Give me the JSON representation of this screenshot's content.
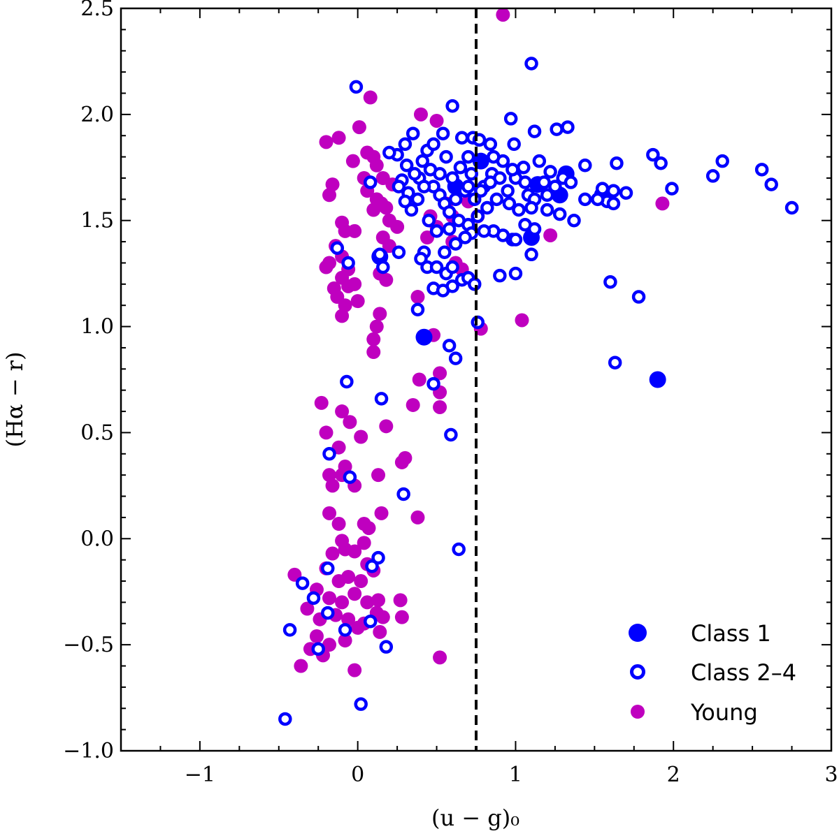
{
  "chart_data": {
    "type": "scatter",
    "xlabel": "(u − g)₀",
    "ylabel": "(Hα − r)",
    "xlim": [
      -1.5,
      3.0
    ],
    "ylim": [
      -1.0,
      2.5
    ],
    "x_ticks": [
      -1,
      0,
      1,
      2,
      3
    ],
    "x_tick_labels": [
      "−1",
      "0",
      "1",
      "2",
      "3"
    ],
    "y_ticks": [
      -1.0,
      -0.5,
      0.0,
      0.5,
      1.0,
      1.5,
      2.0,
      2.5
    ],
    "y_tick_labels": [
      "−1.0",
      "−0.5",
      "0.0",
      "0.5",
      "1.0",
      "1.5",
      "2.0",
      "2.5"
    ],
    "vline_x": 0.75,
    "legend_position": "lower-right",
    "colors": {
      "class1": "#0000ff",
      "class24": "#0000ff",
      "young": "#bf00bf"
    },
    "series": [
      {
        "name": "Class 1",
        "marker": "filled-large",
        "points": [
          [
            0.14,
            1.33
          ],
          [
            0.42,
            0.95
          ],
          [
            1.1,
            1.42
          ],
          [
            1.32,
            1.72
          ],
          [
            1.28,
            1.62
          ],
          [
            1.9,
            0.75
          ],
          [
            0.78,
            1.78
          ],
          [
            0.62,
            1.66
          ],
          [
            1.14,
            1.67
          ],
          [
            1.55,
            1.62
          ]
        ]
      },
      {
        "name": "Class 2–4",
        "marker": "open",
        "points": [
          [
            -0.01,
            2.13
          ],
          [
            0.6,
            2.04
          ],
          [
            1.1,
            2.24
          ],
          [
            0.97,
            1.98
          ],
          [
            1.26,
            1.93
          ],
          [
            1.33,
            1.94
          ],
          [
            1.12,
            1.92
          ],
          [
            0.54,
            1.91
          ],
          [
            0.35,
            1.91
          ],
          [
            0.66,
            1.89
          ],
          [
            0.73,
            1.89
          ],
          [
            0.77,
            1.88
          ],
          [
            0.84,
            1.86
          ],
          [
            0.99,
            1.86
          ],
          [
            1.87,
            1.81
          ],
          [
            1.92,
            1.77
          ],
          [
            2.31,
            1.78
          ],
          [
            2.56,
            1.74
          ],
          [
            2.62,
            1.67
          ],
          [
            2.75,
            1.56
          ],
          [
            2.25,
            1.71
          ],
          [
            1.99,
            1.65
          ],
          [
            1.64,
            1.77
          ],
          [
            1.44,
            1.76
          ],
          [
            1.7,
            1.63
          ],
          [
            1.62,
            1.64
          ],
          [
            1.58,
            1.59
          ],
          [
            1.52,
            1.6
          ],
          [
            1.44,
            1.6
          ],
          [
            1.37,
            1.5
          ],
          [
            1.28,
            1.53
          ],
          [
            1.62,
            1.58
          ],
          [
            1.55,
            1.65
          ],
          [
            0.3,
            1.86
          ],
          [
            0.25,
            1.81
          ],
          [
            0.2,
            1.82
          ],
          [
            0.31,
            1.76
          ],
          [
            0.28,
            1.69
          ],
          [
            0.26,
            1.66
          ],
          [
            0.32,
            1.63
          ],
          [
            0.3,
            1.59
          ],
          [
            0.34,
            1.55
          ],
          [
            0.38,
            1.6
          ],
          [
            0.39,
            1.7
          ],
          [
            0.41,
            1.78
          ],
          [
            0.44,
            1.83
          ],
          [
            0.46,
            1.74
          ],
          [
            0.48,
            1.66
          ],
          [
            0.52,
            1.62
          ],
          [
            0.55,
            1.58
          ],
          [
            0.58,
            1.54
          ],
          [
            0.45,
            1.5
          ],
          [
            0.5,
            1.45
          ],
          [
            0.6,
            1.7
          ],
          [
            0.65,
            1.75
          ],
          [
            0.7,
            1.8
          ],
          [
            0.72,
            1.72
          ],
          [
            0.68,
            1.64
          ],
          [
            0.74,
            1.6
          ],
          [
            0.8,
            1.66
          ],
          [
            0.85,
            1.72
          ],
          [
            0.9,
            1.7
          ],
          [
            0.95,
            1.64
          ],
          [
            1.0,
            1.7
          ],
          [
            1.05,
            1.75
          ],
          [
            1.08,
            1.62
          ],
          [
            1.12,
            1.6
          ],
          [
            1.18,
            1.68
          ],
          [
            1.22,
            1.73
          ],
          [
            1.25,
            1.66
          ],
          [
            1.3,
            1.7
          ],
          [
            1.35,
            1.68
          ],
          [
            1.02,
            1.55
          ],
          [
            0.96,
            1.58
          ],
          [
            0.88,
            1.6
          ],
          [
            0.82,
            1.56
          ],
          [
            0.76,
            1.52
          ],
          [
            0.7,
            1.48
          ],
          [
            0.64,
            1.5
          ],
          [
            0.58,
            1.46
          ],
          [
            1.15,
            1.78
          ],
          [
            1.2,
            1.62
          ],
          [
            0.92,
            1.78
          ],
          [
            0.86,
            1.8
          ],
          [
            0.56,
            1.8
          ],
          [
            0.48,
            1.86
          ],
          [
            0.36,
            1.72
          ],
          [
            0.42,
            1.66
          ],
          [
            0.52,
            1.72
          ],
          [
            0.62,
            1.6
          ],
          [
            0.7,
            1.66
          ],
          [
            0.78,
            1.64
          ],
          [
            0.84,
            1.68
          ],
          [
            0.98,
            1.74
          ],
          [
            1.06,
            1.68
          ],
          [
            1.1,
            1.56
          ],
          [
            1.2,
            1.55
          ],
          [
            1.06,
            1.48
          ],
          [
            1.12,
            1.46
          ],
          [
            0.92,
            1.43
          ],
          [
            0.98,
            1.41
          ],
          [
            1.0,
            1.41
          ],
          [
            0.86,
            1.45
          ],
          [
            0.8,
            1.45
          ],
          [
            0.72,
            1.44
          ],
          [
            0.68,
            1.42
          ],
          [
            0.62,
            1.39
          ],
          [
            0.55,
            1.35
          ],
          [
            0.42,
            1.35
          ],
          [
            0.4,
            1.32
          ],
          [
            0.44,
            1.28
          ],
          [
            0.5,
            1.28
          ],
          [
            0.56,
            1.25
          ],
          [
            0.6,
            1.28
          ],
          [
            0.66,
            1.22
          ],
          [
            0.7,
            1.23
          ],
          [
            0.74,
            1.2
          ],
          [
            0.6,
            1.19
          ],
          [
            0.48,
            1.18
          ],
          [
            0.54,
            1.17
          ],
          [
            0.38,
            1.08
          ],
          [
            0.76,
            1.02
          ],
          [
            0.58,
            0.91
          ],
          [
            0.62,
            0.85
          ],
          [
            0.9,
            1.24
          ],
          [
            1.0,
            1.25
          ],
          [
            1.1,
            1.34
          ],
          [
            1.6,
            1.21
          ],
          [
            1.78,
            1.14
          ],
          [
            1.63,
            0.83
          ],
          [
            0.08,
            1.68
          ],
          [
            0.14,
            1.34
          ],
          [
            0.16,
            1.28
          ],
          [
            -0.13,
            1.37
          ],
          [
            -0.06,
            1.3
          ],
          [
            0.26,
            1.35
          ],
          [
            0.48,
            0.73
          ],
          [
            -0.07,
            0.74
          ],
          [
            0.15,
            0.66
          ],
          [
            0.59,
            0.49
          ],
          [
            -0.18,
            0.4
          ],
          [
            -0.05,
            0.29
          ],
          [
            0.29,
            0.21
          ],
          [
            0.64,
            -0.05
          ],
          [
            0.13,
            -0.09
          ],
          [
            0.09,
            -0.13
          ],
          [
            -0.19,
            -0.14
          ],
          [
            -0.35,
            -0.21
          ],
          [
            -0.28,
            -0.28
          ],
          [
            -0.19,
            -0.35
          ],
          [
            -0.43,
            -0.43
          ],
          [
            -0.08,
            -0.43
          ],
          [
            0.08,
            -0.39
          ],
          [
            0.18,
            -0.51
          ],
          [
            -0.25,
            -0.52
          ],
          [
            0.02,
            -0.78
          ],
          [
            -0.46,
            -0.85
          ]
        ]
      },
      {
        "name": "Young",
        "marker": "filled-small",
        "points": [
          [
            0.92,
            2.47
          ],
          [
            0.08,
            2.08
          ],
          [
            0.4,
            2.0
          ],
          [
            0.5,
            1.97
          ],
          [
            -0.2,
            1.87
          ],
          [
            -0.12,
            1.89
          ],
          [
            0.01,
            1.94
          ],
          [
            0.06,
            1.82
          ],
          [
            0.1,
            1.8
          ],
          [
            0.12,
            1.76
          ],
          [
            0.04,
            1.7
          ],
          [
            0.06,
            1.64
          ],
          [
            0.12,
            1.6
          ],
          [
            0.18,
            1.56
          ],
          [
            -0.16,
            1.67
          ],
          [
            -0.18,
            1.62
          ],
          [
            -0.03,
            1.78
          ],
          [
            0.16,
            1.7
          ],
          [
            0.22,
            1.67
          ],
          [
            0.15,
            1.58
          ],
          [
            0.1,
            1.55
          ],
          [
            0.2,
            1.5
          ],
          [
            0.25,
            1.47
          ],
          [
            0.16,
            1.42
          ],
          [
            0.2,
            1.38
          ],
          [
            -0.1,
            1.49
          ],
          [
            -0.08,
            1.45
          ],
          [
            -0.02,
            1.45
          ],
          [
            -0.14,
            1.38
          ],
          [
            -0.18,
            1.3
          ],
          [
            -0.1,
            1.33
          ],
          [
            -0.06,
            1.27
          ],
          [
            -0.1,
            1.23
          ],
          [
            -0.2,
            1.28
          ],
          [
            -0.15,
            1.18
          ],
          [
            -0.06,
            1.19
          ],
          [
            -0.02,
            1.2
          ],
          [
            -0.13,
            1.14
          ],
          [
            -0.08,
            1.1
          ],
          [
            0.0,
            1.12
          ],
          [
            -0.1,
            1.05
          ],
          [
            0.14,
            1.25
          ],
          [
            0.18,
            1.22
          ],
          [
            0.14,
            1.06
          ],
          [
            0.12,
            1.0
          ],
          [
            0.1,
            0.94
          ],
          [
            0.1,
            0.88
          ],
          [
            0.38,
            1.14
          ],
          [
            0.44,
            1.42
          ],
          [
            0.46,
            1.52
          ],
          [
            0.5,
            1.47
          ],
          [
            0.56,
            1.58
          ],
          [
            0.6,
            1.52
          ],
          [
            0.7,
            1.59
          ],
          [
            0.76,
            1.52
          ],
          [
            0.6,
            1.4
          ],
          [
            0.62,
            1.3
          ],
          [
            0.66,
            1.27
          ],
          [
            0.78,
            0.99
          ],
          [
            1.04,
            1.03
          ],
          [
            1.22,
            1.43
          ],
          [
            1.93,
            1.58
          ],
          [
            0.48,
            0.96
          ],
          [
            0.52,
            0.78
          ],
          [
            0.39,
            0.75
          ],
          [
            0.52,
            0.69
          ],
          [
            0.52,
            0.62
          ],
          [
            0.35,
            0.63
          ],
          [
            -0.23,
            0.64
          ],
          [
            -0.1,
            0.6
          ],
          [
            -0.05,
            0.55
          ],
          [
            0.18,
            0.53
          ],
          [
            -0.2,
            0.5
          ],
          [
            0.02,
            0.48
          ],
          [
            -0.12,
            0.43
          ],
          [
            -0.08,
            0.34
          ],
          [
            -0.18,
            0.3
          ],
          [
            -0.16,
            0.25
          ],
          [
            -0.1,
            0.3
          ],
          [
            0.13,
            0.3
          ],
          [
            -0.02,
            0.25
          ],
          [
            0.3,
            0.38
          ],
          [
            0.28,
            0.36
          ],
          [
            -0.18,
            0.12
          ],
          [
            -0.12,
            0.07
          ],
          [
            0.04,
            0.07
          ],
          [
            0.07,
            0.05
          ],
          [
            0.15,
            0.12
          ],
          [
            0.38,
            0.1
          ],
          [
            -0.1,
            -0.01
          ],
          [
            0.04,
            -0.02
          ],
          [
            -0.16,
            -0.07
          ],
          [
            -0.08,
            -0.05
          ],
          [
            -0.02,
            -0.06
          ],
          [
            0.06,
            -0.12
          ],
          [
            -0.2,
            -0.14
          ],
          [
            -0.12,
            -0.2
          ],
          [
            -0.06,
            -0.18
          ],
          [
            0.02,
            -0.2
          ],
          [
            0.1,
            -0.15
          ],
          [
            -0.26,
            -0.24
          ],
          [
            -0.18,
            -0.28
          ],
          [
            -0.1,
            -0.3
          ],
          [
            -0.02,
            -0.26
          ],
          [
            0.06,
            -0.3
          ],
          [
            0.13,
            -0.29
          ],
          [
            -0.4,
            -0.17
          ],
          [
            -0.32,
            -0.33
          ],
          [
            -0.24,
            -0.38
          ],
          [
            -0.14,
            -0.36
          ],
          [
            -0.06,
            -0.38
          ],
          [
            0.04,
            -0.4
          ],
          [
            0.16,
            -0.37
          ],
          [
            -0.26,
            -0.46
          ],
          [
            -0.18,
            -0.5
          ],
          [
            -0.08,
            -0.48
          ],
          [
            0.0,
            -0.42
          ],
          [
            0.27,
            -0.29
          ],
          [
            0.28,
            -0.37
          ],
          [
            -0.3,
            -0.52
          ],
          [
            -0.22,
            -0.55
          ],
          [
            -0.36,
            -0.6
          ],
          [
            -0.02,
            -0.62
          ],
          [
            0.52,
            -0.56
          ],
          [
            0.14,
            -0.44
          ],
          [
            0.12,
            -0.35
          ]
        ]
      }
    ]
  }
}
